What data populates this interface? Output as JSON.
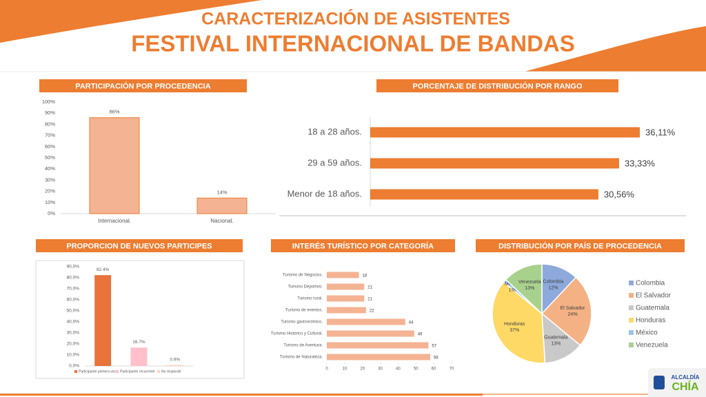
{
  "header": {
    "title": "CARACTERIZACIÓN DE ASISTENTES",
    "subtitle": "FESTIVAL INTERNACIONAL DE BANDAS"
  },
  "logo": {
    "top": "ALCALDÍA",
    "name": "CHÍA"
  },
  "chart_data": [
    {
      "type": "bar",
      "title": "PARTICIPACIÓN POR PROCEDENCIA",
      "categories": [
        "Internacional.",
        "Nacional."
      ],
      "values": [
        86,
        14
      ],
      "value_labels": [
        "86%",
        "14%"
      ],
      "color": "#f4b393",
      "ylim": [
        0,
        100
      ],
      "yticks": [
        {
          "value": 0,
          "label": "0%"
        },
        {
          "value": 10,
          "label": "10%"
        },
        {
          "value": 20,
          "label": "20%"
        },
        {
          "value": 30,
          "label": "30%"
        },
        {
          "value": 40,
          "label": "40%"
        },
        {
          "value": 50,
          "label": "50%"
        },
        {
          "value": 60,
          "label": "60%"
        },
        {
          "value": 70,
          "label": "70%"
        },
        {
          "value": 80,
          "label": "80%"
        },
        {
          "value": 90,
          "label": "90%"
        },
        {
          "value": 100,
          "label": "100%"
        }
      ]
    },
    {
      "type": "hbar",
      "title": "PORCENTAJE DE DISTRIBUCIÓN POR RANGO",
      "categories": [
        "18 a 28 años.",
        "29 a 59 años.",
        "Menor de 18 años."
      ],
      "values": [
        36.11,
        33.33,
        30.56
      ],
      "value_labels": [
        "36,11%",
        "33,33%",
        "30,56%"
      ],
      "color": "#ed7d31"
    },
    {
      "type": "bar",
      "title": "PROPORCION DE NUEVOS PARTICIPES",
      "categories": [
        "Participante primera vez",
        "Participante recurrente",
        "No responde"
      ],
      "values": [
        82.4,
        16.7,
        0.9
      ],
      "value_labels": [
        "82.4%",
        "16.7%",
        "0.9%"
      ],
      "colors": [
        "#e8743b",
        "#ffc0cb",
        "#ffd0c0"
      ],
      "legend": "bottom",
      "ylim": [
        0,
        90
      ],
      "yticks": [
        {
          "value": 0,
          "label": "0,0%"
        },
        {
          "value": 10,
          "label": "10,0%"
        },
        {
          "value": 20,
          "label": "20,0%"
        },
        {
          "value": 30,
          "label": "30,0%"
        },
        {
          "value": 40,
          "label": "40,0%"
        },
        {
          "value": 50,
          "label": "50,0%"
        },
        {
          "value": 60,
          "label": "60,0%"
        },
        {
          "value": 70,
          "label": "70,0%"
        },
        {
          "value": 80,
          "label": "80,0%"
        },
        {
          "value": 90,
          "label": "90,0%"
        }
      ]
    },
    {
      "type": "hbar",
      "title": "INTERÉS TURÍSTICO POR CATEGORÍA",
      "categories": [
        "Turismo de Negocios.",
        "Turismo Deportivo.",
        "Turismo rural.",
        "Turismo de eventos.",
        "Turismo gastronómico.",
        "Turismo Histórico y Cultural.",
        "Turismo de Aventura.",
        "Turismo de Naturaleza."
      ],
      "values": [
        18,
        21,
        21,
        22,
        44,
        49,
        57,
        58
      ],
      "color": "#f4b393",
      "xlim": [
        0,
        70
      ],
      "xticks": [
        0,
        10,
        20,
        30,
        40,
        50,
        60,
        70
      ]
    },
    {
      "type": "pie",
      "title": "DISTRIBUCIÓN POR PAÍS DE PROCEDENCIA",
      "categories": [
        "Colombia",
        "El Salvador",
        "Guatemala",
        "Honduras",
        "México",
        "Venezuela"
      ],
      "values": [
        12,
        24,
        13,
        37,
        1,
        13
      ],
      "value_labels": [
        "12%",
        "24%",
        "13%",
        "37%",
        "1%",
        "13%"
      ],
      "colors": [
        "#8ea9db",
        "#f4b183",
        "#c9c9c9",
        "#ffd966",
        "#9dc3e6",
        "#a9d18e"
      ],
      "legend": "right"
    }
  ]
}
